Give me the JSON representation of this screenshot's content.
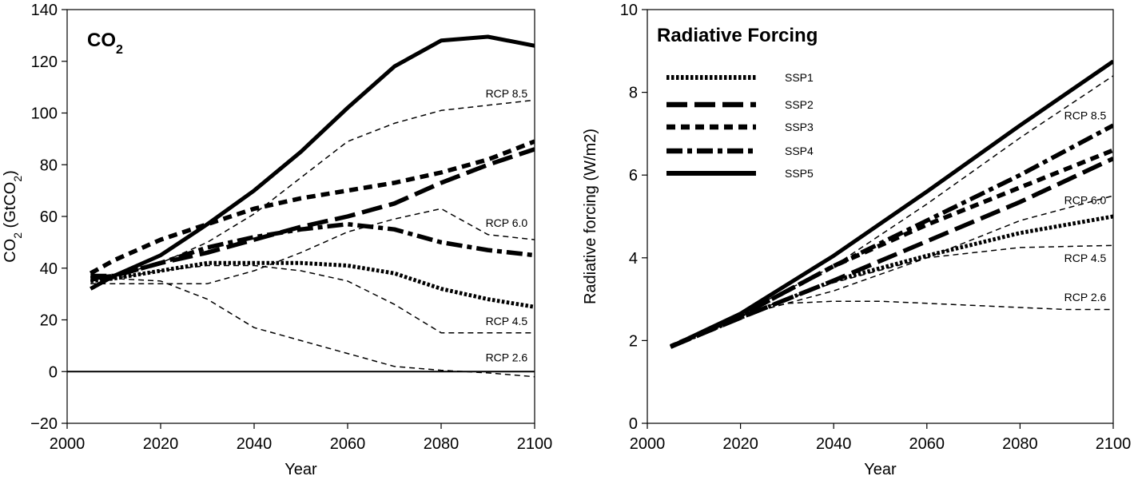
{
  "chart_data": [
    {
      "type": "line",
      "title": "CO",
      "title_sub": "2",
      "xlabel": "Year",
      "ylabel_parts": [
        "CO",
        "2",
        " (GtCO",
        "2",
        ")"
      ],
      "xlim": [
        2000,
        2100
      ],
      "ylim": [
        -20,
        140
      ],
      "xticks": [
        2000,
        2020,
        2040,
        2060,
        2080,
        2100
      ],
      "yticks": [
        -20,
        0,
        20,
        40,
        60,
        80,
        100,
        120,
        140
      ],
      "xtick_labels": [
        "2000",
        "2020",
        "2040",
        "2060",
        "2080",
        "2100"
      ],
      "ytick_labels": [
        "−20",
        "0",
        "20",
        "40",
        "60",
        "80",
        "100",
        "120",
        "140"
      ],
      "zero_line": 0,
      "grid": false,
      "rcp_series": [
        {
          "name": "RCP 8.5",
          "x": [
            2005,
            2010,
            2020,
            2030,
            2040,
            2050,
            2060,
            2070,
            2080,
            2090,
            2100
          ],
          "values": [
            35,
            37,
            42,
            50,
            61,
            75,
            89,
            96,
            101,
            103,
            105
          ]
        },
        {
          "name": "RCP 6.0",
          "x": [
            2005,
            2010,
            2020,
            2030,
            2040,
            2050,
            2060,
            2070,
            2080,
            2090,
            2100
          ],
          "values": [
            34,
            34,
            34,
            34,
            39,
            46,
            54,
            59,
            63,
            53,
            51
          ]
        },
        {
          "name": "RCP 4.5",
          "x": [
            2005,
            2010,
            2020,
            2030,
            2040,
            2050,
            2060,
            2070,
            2080,
            2090,
            2100
          ],
          "values": [
            35,
            36,
            39,
            41,
            41,
            39,
            35,
            26,
            15,
            15,
            15
          ]
        },
        {
          "name": "RCP 2.6",
          "x": [
            2005,
            2010,
            2020,
            2030,
            2040,
            2050,
            2060,
            2070,
            2080,
            2090,
            2100
          ],
          "values": [
            35,
            36,
            35,
            28,
            17,
            12,
            7,
            2,
            0.5,
            -0.5,
            -2
          ]
        }
      ],
      "rcp_label_positions": [
        {
          "name": "RCP 8.5",
          "x": 2094,
          "y": 106
        },
        {
          "name": "RCP 6.0",
          "x": 2094,
          "y": 56
        },
        {
          "name": "RCP 4.5",
          "x": 2094,
          "y": 18
        },
        {
          "name": "RCP 2.6",
          "x": 2094,
          "y": 4
        }
      ],
      "series": [
        {
          "name": "SSP1",
          "style": "dotted",
          "x": [
            2005,
            2010,
            2020,
            2030,
            2040,
            2050,
            2060,
            2070,
            2080,
            2090,
            2100
          ],
          "values": [
            35,
            36,
            39,
            42,
            42,
            42,
            41,
            38,
            32,
            28,
            25
          ]
        },
        {
          "name": "SSP2",
          "style": "longdash",
          "x": [
            2005,
            2010,
            2020,
            2030,
            2040,
            2050,
            2060,
            2070,
            2080,
            2090,
            2100
          ],
          "values": [
            36,
            37,
            42,
            46,
            51,
            56,
            60,
            65,
            73,
            80,
            86
          ]
        },
        {
          "name": "SSP3",
          "style": "dash",
          "x": [
            2005,
            2010,
            2020,
            2030,
            2040,
            2050,
            2060,
            2070,
            2080,
            2090,
            2100
          ],
          "values": [
            38,
            43,
            51,
            57,
            63,
            67,
            70,
            73,
            77,
            82,
            89
          ]
        },
        {
          "name": "SSP4",
          "style": "dashdot",
          "x": [
            2005,
            2010,
            2020,
            2030,
            2040,
            2050,
            2060,
            2070,
            2080,
            2090,
            2100
          ],
          "values": [
            37,
            37,
            42,
            48,
            52,
            55,
            57,
            55,
            50,
            47,
            45
          ]
        },
        {
          "name": "SSP5",
          "style": "solid",
          "x": [
            2005,
            2010,
            2020,
            2030,
            2040,
            2050,
            2060,
            2070,
            2080,
            2090,
            2100
          ],
          "values": [
            32,
            37,
            45,
            57,
            70,
            85,
            102,
            118,
            128,
            129.5,
            126
          ]
        }
      ]
    },
    {
      "type": "line",
      "title": "Radiative Forcing",
      "xlabel": "Year",
      "ylabel": "Radiative forcing (W/m2)",
      "xlim": [
        2000,
        2100
      ],
      "ylim": [
        0,
        10
      ],
      "xticks": [
        2000,
        2020,
        2040,
        2060,
        2080,
        2100
      ],
      "yticks": [
        0,
        2,
        4,
        6,
        8,
        10
      ],
      "xtick_labels": [
        "2000",
        "2020",
        "2040",
        "2060",
        "2080",
        "2100"
      ],
      "ytick_labels": [
        "0",
        "2",
        "4",
        "6",
        "8",
        "10"
      ],
      "grid": false,
      "legend_position": "top-left",
      "legend": [
        "SSP1",
        "SSP2",
        "SSP3",
        "SSP4",
        "SSP5"
      ],
      "rcp_series": [
        {
          "name": "RCP 8.5",
          "x": [
            2005,
            2020,
            2040,
            2060,
            2080,
            2100
          ],
          "values": [
            1.9,
            2.65,
            3.8,
            5.3,
            6.9,
            8.4
          ]
        },
        {
          "name": "RCP 6.0",
          "x": [
            2005,
            2020,
            2040,
            2060,
            2080,
            2100
          ],
          "values": [
            1.9,
            2.6,
            3.2,
            4.0,
            4.9,
            5.5
          ]
        },
        {
          "name": "RCP 4.5",
          "x": [
            2005,
            2020,
            2040,
            2060,
            2080,
            2100
          ],
          "values": [
            1.9,
            2.6,
            3.4,
            4.0,
            4.25,
            4.3
          ]
        },
        {
          "name": "RCP 2.6",
          "x": [
            2005,
            2020,
            2030,
            2040,
            2050,
            2060,
            2070,
            2080,
            2090,
            2100
          ],
          "values": [
            1.9,
            2.6,
            2.9,
            2.95,
            2.95,
            2.9,
            2.85,
            2.8,
            2.75,
            2.75
          ]
        }
      ],
      "rcp_label_positions": [
        {
          "name": "RCP 8.5",
          "x": 2094,
          "y": 7.35
        },
        {
          "name": "RCP 6.0",
          "x": 2094,
          "y": 5.3
        },
        {
          "name": "RCP 4.5",
          "x": 2094,
          "y": 3.9
        },
        {
          "name": "RCP 2.6",
          "x": 2094,
          "y": 2.95
        }
      ],
      "series": [
        {
          "name": "SSP1",
          "style": "dotted",
          "x": [
            2005,
            2020,
            2040,
            2060,
            2080,
            2100
          ],
          "values": [
            1.85,
            2.55,
            3.45,
            4.05,
            4.6,
            5.0
          ]
        },
        {
          "name": "SSP2",
          "style": "longdash",
          "x": [
            2005,
            2020,
            2040,
            2060,
            2080,
            2100
          ],
          "values": [
            1.85,
            2.55,
            3.45,
            4.4,
            5.35,
            6.4
          ]
        },
        {
          "name": "SSP3",
          "style": "dash",
          "x": [
            2005,
            2020,
            2040,
            2060,
            2080,
            2100
          ],
          "values": [
            1.85,
            2.6,
            3.8,
            4.8,
            5.7,
            6.6
          ]
        },
        {
          "name": "SSP4",
          "style": "dashdot",
          "x": [
            2005,
            2020,
            2040,
            2060,
            2080,
            2100
          ],
          "values": [
            1.85,
            2.6,
            3.8,
            4.9,
            6.0,
            7.2
          ]
        },
        {
          "name": "SSP5",
          "style": "solid",
          "x": [
            2005,
            2020,
            2040,
            2060,
            2080,
            2100
          ],
          "values": [
            1.85,
            2.65,
            4.05,
            5.6,
            7.2,
            8.75
          ]
        }
      ]
    }
  ]
}
